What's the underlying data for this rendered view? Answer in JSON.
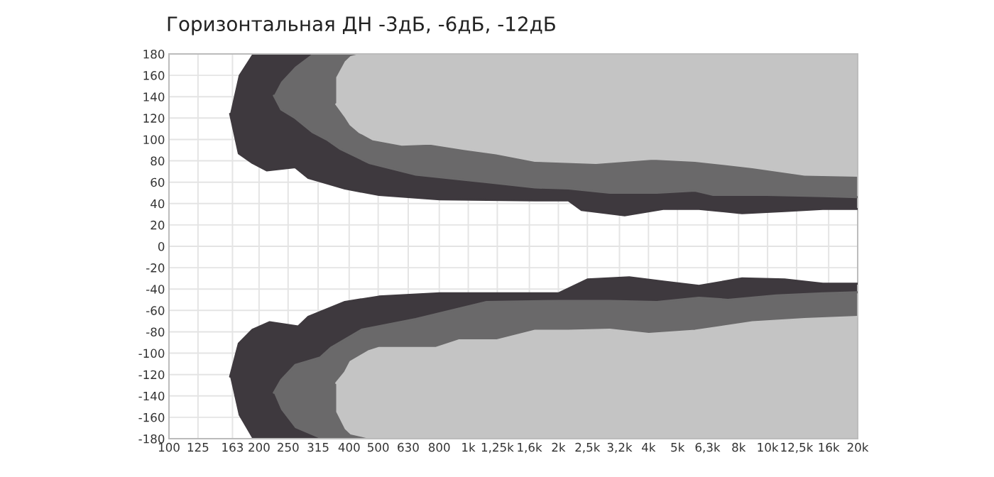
{
  "chart_data": {
    "type": "line",
    "title": "Горизонтальная ДН -3дБ, -6дБ, -12дБ",
    "series": [
      {
        "color": "#3e393e",
        "x": [
          160,
          171,
          190,
          212,
          264,
          292,
          387,
          503,
          803,
          1670,
          2160,
          2390,
          3330,
          4480,
          5900,
          8220,
          11400,
          15300,
          20000
        ],
        "values": [
          124,
          87,
          78,
          71,
          74,
          64,
          54,
          48,
          44,
          43,
          43,
          34,
          29,
          35,
          35,
          31,
          33,
          35,
          35
        ],
        "lower": [
          124,
          87,
          78,
          71,
          74,
          64,
          54,
          48,
          44,
          43,
          43,
          34,
          29,
          35,
          35,
          31,
          33,
          35,
          35
        ],
        "upper": [
          124,
          160,
          180,
          180,
          180,
          180,
          180,
          180,
          180,
          180,
          180,
          180,
          180,
          180,
          180,
          180,
          180,
          180,
          180
        ]
      },
      {
        "color": "#3e393e",
        "x": [
          160,
          171,
          190,
          217,
          270,
          292,
          387,
          503,
          803,
          2000,
          2500,
          3450,
          4480,
          5900,
          8220,
          11400,
          15300,
          20000
        ],
        "values": [
          -122,
          -91,
          -78,
          -71,
          -75,
          -66,
          -52,
          -47,
          -44,
          -44,
          -31,
          -29,
          -33,
          -37,
          -30,
          -31,
          -35,
          -35
        ],
        "upper": [
          -122,
          -91,
          -78,
          -71,
          -75,
          -66,
          -52,
          -47,
          -44,
          -44,
          -31,
          -29,
          -33,
          -37,
          -30,
          -31,
          -35,
          -35
        ],
        "lower": [
          -122,
          -158,
          -180,
          -180,
          -180,
          -180,
          -180,
          -180,
          -180,
          -180,
          -180,
          -180,
          -180,
          -180,
          -180,
          -180,
          -180,
          -180
        ]
      },
      {
        "color": "#6a696a",
        "x": [
          224,
          237,
          264,
          301,
          336,
          374,
          466,
          668,
          1150,
          1670,
          2160,
          2970,
          4270,
          5720,
          6580,
          9890,
          15300,
          20000
        ],
        "values": [
          141,
          128,
          120,
          107,
          100,
          91,
          78,
          67,
          60,
          55,
          54,
          50,
          50,
          52,
          48,
          48,
          47,
          46
        ],
        "lower": [
          141,
          128,
          120,
          107,
          100,
          91,
          78,
          67,
          60,
          55,
          54,
          50,
          50,
          52,
          48,
          48,
          47,
          46
        ],
        "upper": [
          141,
          154,
          168,
          180,
          180,
          180,
          180,
          180,
          180,
          180,
          180,
          180,
          180,
          180,
          180,
          180,
          180,
          180
        ]
      },
      {
        "color": "#6a696a",
        "x": [
          224,
          237,
          264,
          320,
          347,
          440,
          668,
          1150,
          2000,
          2970,
          4270,
          5900,
          7370,
          10700,
          15300,
          20000
        ],
        "values": [
          -137,
          -125,
          -111,
          -104,
          -95,
          -78,
          -68,
          -52,
          -51,
          -51,
          -52,
          -48,
          -50,
          -46,
          -44,
          -43
        ],
        "upper": [
          -137,
          -125,
          -111,
          -104,
          -95,
          -78,
          -68,
          -52,
          -51,
          -51,
          -52,
          -48,
          -50,
          -46,
          -44,
          -43
        ],
        "lower": [
          -137,
          -153,
          -170,
          -180,
          -180,
          -180,
          -180,
          -180,
          -180,
          -180,
          -180,
          -180,
          -180,
          -180,
          -180,
          -180
        ]
      },
      {
        "color": "#c4c4c4",
        "x": [
          362,
          387,
          404,
          432,
          481,
          600,
          745,
          967,
          1240,
          1670,
          2670,
          4140,
          5720,
          8900,
          13300,
          20000
        ],
        "values": [
          133,
          122,
          114,
          107,
          100,
          95,
          96,
          91,
          87,
          80,
          78,
          82,
          80,
          74,
          67,
          66
        ],
        "lower": [
          133,
          122,
          114,
          107,
          100,
          95,
          96,
          91,
          87,
          80,
          78,
          82,
          80,
          74,
          67,
          66
        ],
        "upper": [
          158,
          173,
          178,
          180,
          180,
          180,
          180,
          180,
          180,
          180,
          180,
          180,
          180,
          180,
          180,
          180
        ]
      },
      {
        "color": "#c4c4c4",
        "x": [
          362,
          387,
          404,
          466,
          503,
          780,
          929,
          1240,
          1670,
          2160,
          2970,
          4010,
          5720,
          8900,
          13300,
          20000
        ],
        "values": [
          -128,
          -118,
          -108,
          -98,
          -95,
          -95,
          -88,
          -88,
          -79,
          -79,
          -78,
          -82,
          -79,
          -71,
          -68,
          -66
        ],
        "upper": [
          -128,
          -118,
          -108,
          -98,
          -95,
          -95,
          -88,
          -88,
          -79,
          -79,
          -78,
          -82,
          -79,
          -71,
          -68,
          -66
        ],
        "lower": [
          -155,
          -171,
          -176,
          -180,
          -180,
          -180,
          -180,
          -180,
          -180,
          -180,
          -180,
          -180,
          -180,
          -180,
          -180,
          -180
        ]
      }
    ],
    "log": "x",
    "xlim": [
      100,
      20000
    ],
    "xticks": [
      100,
      125,
      163,
      200,
      250,
      315,
      400,
      500,
      630,
      800,
      {
        "value": 1000,
        "label": "1k"
      },
      {
        "value": 1250,
        "label": "1,25k"
      },
      {
        "value": 1600,
        "label": "1,6k"
      },
      {
        "value": 2000,
        "label": "2k"
      },
      {
        "value": 2500,
        "label": "2,5k"
      },
      {
        "value": 3200,
        "label": "3,2k"
      },
      {
        "value": 4000,
        "label": "4k"
      },
      {
        "value": 5000,
        "label": "5k"
      },
      {
        "value": 6300,
        "label": "6,3k"
      },
      {
        "value": 8000,
        "label": "8k"
      },
      {
        "value": 10000,
        "label": "10k"
      },
      {
        "value": 12500,
        "label": "12,5k"
      },
      {
        "value": 16000,
        "label": "16k"
      },
      {
        "value": 20000,
        "label": "20k"
      }
    ],
    "ylim": [
      -180,
      180
    ],
    "yticks": [
      -180,
      -160,
      -140,
      -120,
      -100,
      -80,
      -60,
      -40,
      -20,
      0,
      20,
      40,
      60,
      80,
      100,
      120,
      140,
      160,
      180
    ],
    "grid": true
  }
}
